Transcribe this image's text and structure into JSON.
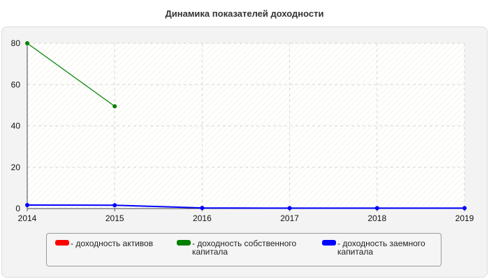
{
  "chart_data": {
    "type": "line",
    "title": "Динамика показателей доходности",
    "x": [
      "2014",
      "2015",
      "2016",
      "2017",
      "2018",
      "2019"
    ],
    "ylim": [
      0,
      80
    ],
    "yticks": [
      0,
      20,
      40,
      60,
      80
    ],
    "grid": true,
    "legend_position": "bottom",
    "series": [
      {
        "name": "- доходность активов",
        "color": "#ff0000",
        "values": [
          null,
          null,
          null,
          null,
          null,
          null
        ]
      },
      {
        "name": "- доходность собственного капитала",
        "color": "#008000",
        "values": [
          80,
          49.5,
          null,
          null,
          null,
          null
        ]
      },
      {
        "name": "- доходность заемного капитала",
        "color": "#0000ff",
        "values": [
          1.7,
          1.6,
          0.3,
          0.2,
          0.2,
          0.2
        ]
      }
    ]
  }
}
